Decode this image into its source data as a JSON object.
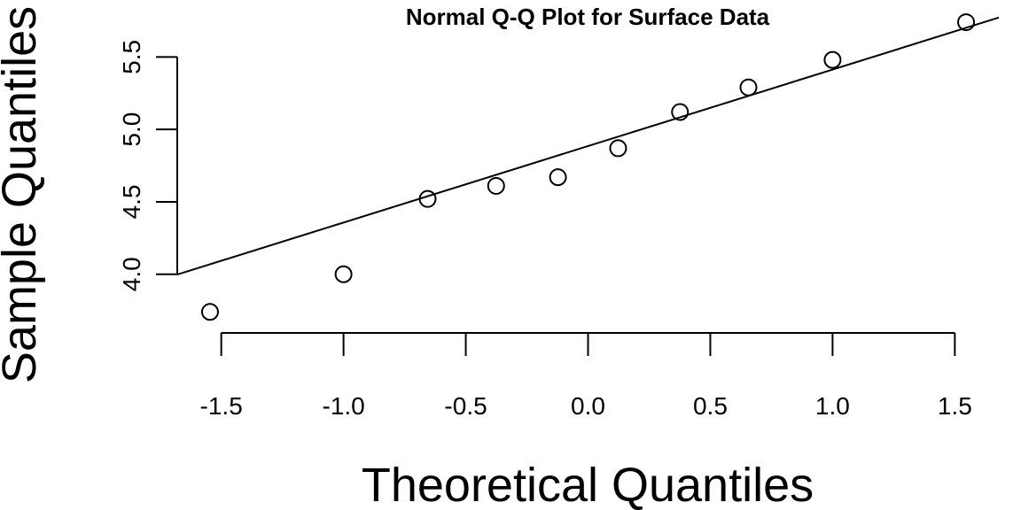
{
  "chart_data": {
    "type": "scatter",
    "title": "Normal Q-Q Plot for Surface Data",
    "xlabel": "Theoretical Quantiles",
    "ylabel": "Sample Quantiles",
    "x_ticks": [
      "-1.5",
      "-1.0",
      "-0.5",
      "0.0",
      "0.5",
      "1.0",
      "1.5"
    ],
    "y_ticks": [
      "4.0",
      "4.5",
      "5.0",
      "5.5"
    ],
    "x_tick_values": [
      -1.5,
      -1.0,
      -0.5,
      0.0,
      0.5,
      1.0,
      1.5
    ],
    "y_tick_values": [
      4.0,
      4.5,
      5.0,
      5.5
    ],
    "xlim": [
      -1.68,
      1.68
    ],
    "ylim": [
      3.65,
      5.82
    ],
    "points": [
      {
        "x": -1.546,
        "y": 3.74
      },
      {
        "x": -1.0,
        "y": 4.0
      },
      {
        "x": -0.656,
        "y": 4.52
      },
      {
        "x": -0.376,
        "y": 4.61
      },
      {
        "x": -0.123,
        "y": 4.67
      },
      {
        "x": 0.123,
        "y": 4.87
      },
      {
        "x": 0.376,
        "y": 5.12
      },
      {
        "x": 0.656,
        "y": 5.29
      },
      {
        "x": 1.0,
        "y": 5.48
      },
      {
        "x": 1.546,
        "y": 5.74
      }
    ],
    "reference_line": {
      "intercept": 4.885,
      "slope": 0.528
    },
    "grid": false,
    "legend": "none"
  }
}
